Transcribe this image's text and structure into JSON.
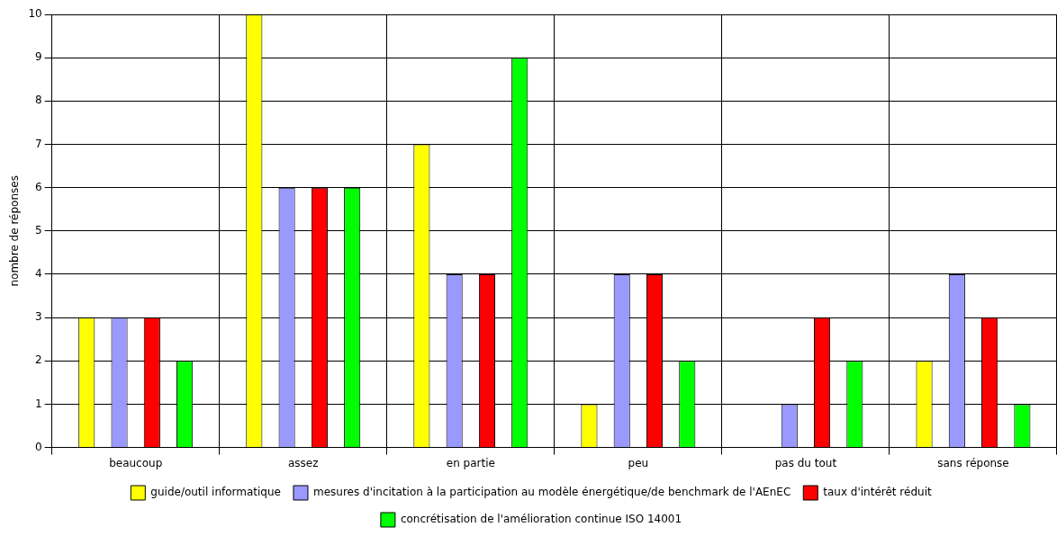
{
  "chart_data": {
    "type": "bar",
    "ylabel": "nombre de réponses",
    "categories": [
      "beaucoup",
      "assez",
      "en partie",
      "peu",
      "pas du tout",
      "sans réponse"
    ],
    "series": [
      {
        "name": "guide/outil informatique",
        "color": "#ffff00",
        "values": [
          3,
          10,
          7,
          1,
          0,
          2
        ]
      },
      {
        "name": "mesures d'incitation à la participation au modèle énergétique/de benchmark de l'AEnEC",
        "color": "#9999ff",
        "values": [
          3,
          6,
          4,
          4,
          1,
          4
        ]
      },
      {
        "name": "taux d'intérêt réduit",
        "color": "#ff0000",
        "values": [
          3,
          6,
          4,
          4,
          3,
          3
        ]
      },
      {
        "name": "concrétisation de l'amélioration continue ISO 14001",
        "color": "#00ff00",
        "values": [
          2,
          6,
          9,
          2,
          2,
          1
        ]
      }
    ],
    "ylim": [
      0,
      10
    ],
    "yticks": [
      0,
      1,
      2,
      3,
      4,
      5,
      6,
      7,
      8,
      9,
      10
    ],
    "grid": true,
    "legend": "bottom"
  }
}
